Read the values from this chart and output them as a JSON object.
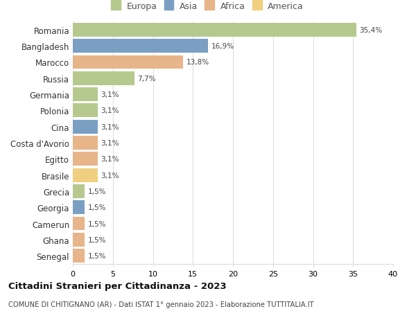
{
  "countries": [
    "Romania",
    "Bangladesh",
    "Marocco",
    "Russia",
    "Germania",
    "Polonia",
    "Cina",
    "Costa d'Avorio",
    "Egitto",
    "Brasile",
    "Grecia",
    "Georgia",
    "Camerun",
    "Ghana",
    "Senegal"
  ],
  "values": [
    35.4,
    16.9,
    13.8,
    7.7,
    3.1,
    3.1,
    3.1,
    3.1,
    3.1,
    3.1,
    1.5,
    1.5,
    1.5,
    1.5,
    1.5
  ],
  "labels": [
    "35,4%",
    "16,9%",
    "13,8%",
    "7,7%",
    "3,1%",
    "3,1%",
    "3,1%",
    "3,1%",
    "3,1%",
    "3,1%",
    "1,5%",
    "1,5%",
    "1,5%",
    "1,5%",
    "1,5%"
  ],
  "continents": [
    "Europa",
    "Asia",
    "Africa",
    "Europa",
    "Europa",
    "Europa",
    "Asia",
    "Africa",
    "Africa",
    "America",
    "Europa",
    "Asia",
    "Africa",
    "Africa",
    "Africa"
  ],
  "colors": {
    "Europa": "#b5c98e",
    "Asia": "#7a9fc2",
    "Africa": "#e8b48a",
    "America": "#f0d080"
  },
  "legend_order": [
    "Europa",
    "Asia",
    "Africa",
    "America"
  ],
  "xlim": [
    0,
    40
  ],
  "xticks": [
    0,
    5,
    10,
    15,
    20,
    25,
    30,
    35,
    40
  ],
  "title": "Cittadini Stranieri per Cittadinanza - 2023",
  "subtitle": "COMUNE DI CHITIGNANO (AR) - Dati ISTAT 1° gennaio 2023 - Elaborazione TUTTITALIA.IT",
  "bg_color": "#ffffff",
  "grid_color": "#dddddd"
}
